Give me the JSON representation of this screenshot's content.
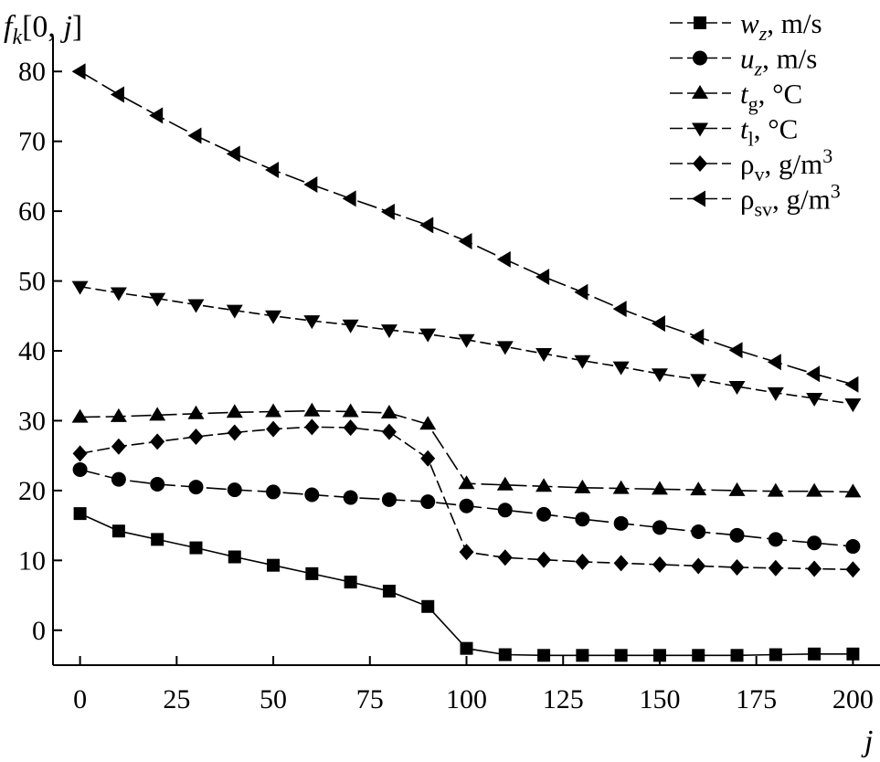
{
  "chart_data": {
    "type": "line",
    "xlabel": "j",
    "ylabel": "f_k[0, j]",
    "xlim": [
      -7,
      207
    ],
    "ylim": [
      -5,
      85
    ],
    "xticks": [
      0,
      25,
      50,
      75,
      100,
      125,
      150,
      175,
      200
    ],
    "yticks": [
      0,
      10,
      20,
      30,
      40,
      50,
      60,
      70,
      80
    ],
    "xtick_labels": [
      "0",
      "25",
      "50",
      "75",
      "100",
      "125",
      "150",
      "175",
      "200"
    ],
    "ytick_labels": [
      "0",
      "10",
      "20",
      "30",
      "40",
      "50",
      "60",
      "70",
      "80"
    ],
    "grid": false,
    "legend_position": "top-right",
    "x": [
      0,
      10,
      20,
      30,
      40,
      50,
      60,
      70,
      80,
      90,
      100,
      110,
      120,
      130,
      140,
      150,
      160,
      170,
      180,
      190,
      200
    ],
    "series": [
      {
        "name": "w_z, m/s",
        "legend": {
          "symbol": "w",
          "sub": "z",
          "unit": ", m/s",
          "sup": ""
        },
        "marker": "square",
        "values": [
          16.7,
          14.2,
          13.0,
          11.8,
          10.5,
          9.3,
          8.1,
          6.9,
          5.6,
          3.4,
          -2.6,
          -3.5,
          -3.6,
          -3.6,
          -3.6,
          -3.6,
          -3.6,
          -3.6,
          -3.5,
          -3.4,
          -3.4
        ]
      },
      {
        "name": "u_z, m/s",
        "legend": {
          "symbol": "u",
          "sub": "z",
          "unit": ", m/s",
          "sup": ""
        },
        "marker": "circle",
        "values": [
          23.0,
          21.6,
          20.9,
          20.5,
          20.1,
          19.8,
          19.4,
          19.0,
          18.7,
          18.4,
          17.8,
          17.2,
          16.6,
          15.9,
          15.3,
          14.7,
          14.1,
          13.6,
          13.0,
          12.5,
          12.0
        ]
      },
      {
        "name": "t_g, °C",
        "legend": {
          "symbol": "t",
          "sub": "g",
          "unit": ", °C",
          "sup": ""
        },
        "marker": "triangle-up",
        "values": [
          30.5,
          30.6,
          30.8,
          31.0,
          31.2,
          31.3,
          31.4,
          31.3,
          31.1,
          29.5,
          21.0,
          20.8,
          20.6,
          20.4,
          20.3,
          20.2,
          20.1,
          20.0,
          19.9,
          19.9,
          19.8
        ]
      },
      {
        "name": "t_l, °C",
        "legend": {
          "symbol": "t",
          "sub": "l",
          "unit": ", °C",
          "sup": ""
        },
        "marker": "triangle-down",
        "values": [
          49.2,
          48.3,
          47.5,
          46.6,
          45.8,
          45.0,
          44.3,
          43.7,
          43.0,
          42.4,
          41.6,
          40.6,
          39.6,
          38.6,
          37.7,
          36.7,
          35.9,
          34.9,
          34.0,
          33.2,
          32.4
        ]
      },
      {
        "name": "ρ_v, g/m3",
        "legend": {
          "symbol": "ρ",
          "sub": "v",
          "unit": ", g/m",
          "sup": "3"
        },
        "marker": "diamond",
        "values": [
          25.3,
          26.3,
          27.0,
          27.7,
          28.3,
          28.8,
          29.1,
          29.0,
          28.4,
          24.6,
          11.2,
          10.4,
          10.1,
          9.8,
          9.6,
          9.4,
          9.2,
          9.0,
          8.9,
          8.8,
          8.7
        ]
      },
      {
        "name": "ρ_sv, g/m3",
        "legend": {
          "symbol": "ρ",
          "sub": "sv",
          "unit": ", g/m",
          "sup": "3"
        },
        "marker": "triangle-left",
        "values": [
          80.0,
          76.7,
          73.7,
          70.8,
          68.2,
          65.9,
          63.8,
          61.8,
          59.9,
          58.0,
          55.7,
          53.1,
          50.6,
          48.4,
          46.0,
          43.9,
          42.0,
          40.1,
          38.4,
          36.7,
          35.2
        ]
      }
    ]
  }
}
